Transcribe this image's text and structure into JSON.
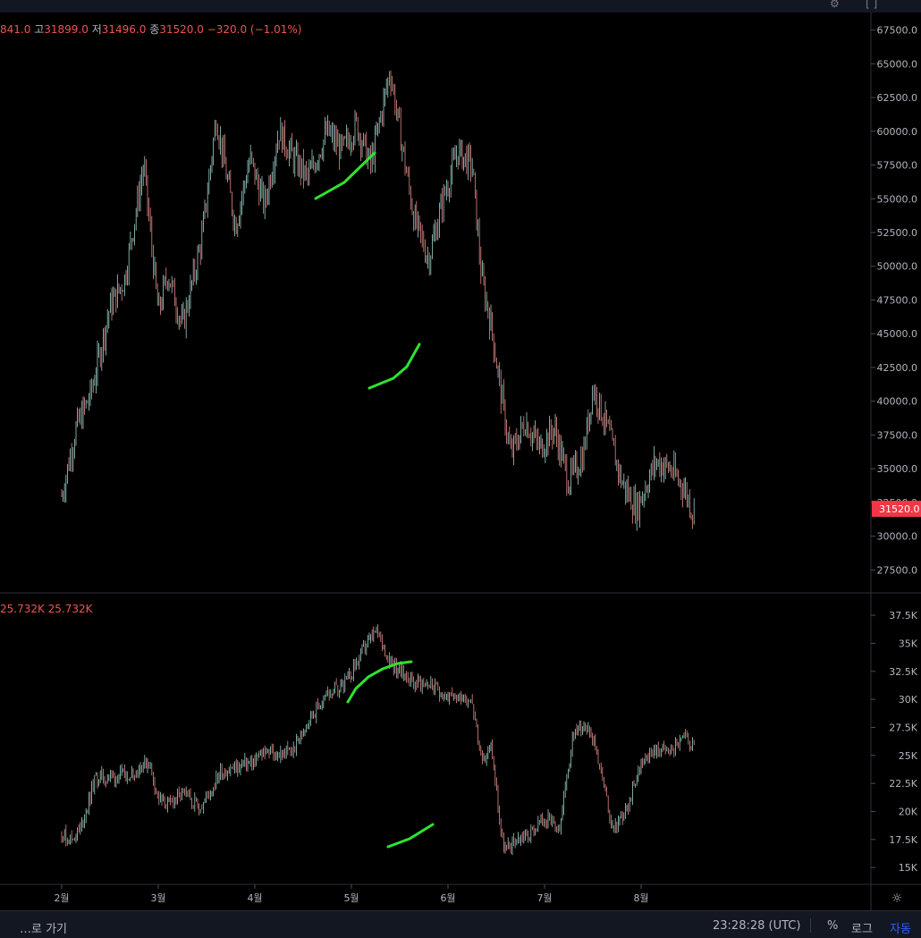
{
  "legend": {
    "open_label": "",
    "open_value": "841.0",
    "high_label": "고",
    "high_value": "31899.0",
    "low_label": "저",
    "low_value": "31496.0",
    "close_label": "종",
    "close_value": "31520.0",
    "change": "−320.0 (−1.01%)"
  },
  "indicator_legend": "25.732K 25.732K",
  "price_badge": "31520.0",
  "bottom": {
    "goto_label": "…로 가기",
    "time": "23:28:28 (UTC)",
    "percent_label": "%",
    "log_label": "로그",
    "auto_label": "자동"
  },
  "colors": {
    "background": "#000000",
    "up": "#26a69a",
    "down": "#ef5350",
    "annotation": "#2ee32e",
    "badge": "#f23645"
  },
  "chart_data": [
    {
      "type": "line",
      "description_free": true,
      "x_ticks": [
        "2월",
        "3월",
        "4월",
        "5월",
        "6월",
        "7월",
        "8월"
      ],
      "y_ticks": [
        27500.0,
        30000.0,
        32500.0,
        35000.0,
        37500.0,
        40000.0,
        42500.0,
        45000.0,
        47500.0,
        50000.0,
        52500.0,
        55000.0,
        57500.0,
        60000.0,
        62500.0,
        65000.0,
        67500.0
      ],
      "ylim": [
        25800,
        68800
      ],
      "x": [
        1.0,
        1.15,
        1.3,
        1.5,
        1.65,
        1.85,
        2.0,
        2.1,
        2.25,
        2.45,
        2.6,
        2.8,
        2.95,
        3.1,
        3.25,
        3.4,
        3.55,
        3.75,
        3.9,
        4.05,
        4.2,
        4.4,
        4.5,
        4.65,
        4.8,
        4.95,
        5.1,
        5.25,
        5.35,
        5.45,
        5.55,
        5.65,
        5.8,
        5.95,
        6.1,
        6.25,
        6.4,
        6.5,
        6.65,
        6.8,
        6.95,
        7.15,
        7.3,
        7.45,
        7.55
      ],
      "y": [
        33000,
        38000,
        40500,
        47000,
        49000,
        57500,
        46500,
        49500,
        45500,
        52000,
        61000,
        53000,
        58000,
        54500,
        60000,
        58000,
        56500,
        60000,
        58500,
        60500,
        57500,
        64500,
        60000,
        53500,
        50500,
        55000,
        58500,
        57500,
        49000,
        45500,
        40500,
        36000,
        38500,
        36500,
        38000,
        34000,
        36000,
        41000,
        38000,
        34000,
        32000,
        35500,
        35000,
        33500,
        31520
      ]
    },
    {
      "type": "line",
      "x_ticks": [
        "2월",
        "3월",
        "4월",
        "5월",
        "6월",
        "7월",
        "8월"
      ],
      "y_ticks": [
        "15K",
        "17.5K",
        "20K",
        "22.5K",
        "25K",
        "27.5K",
        "30K",
        "32.5K",
        "35K",
        "37.5K"
      ],
      "ylim": [
        13500,
        39500
      ],
      "x": [
        1.0,
        1.1,
        1.2,
        1.35,
        1.55,
        1.75,
        1.9,
        2.0,
        2.1,
        2.25,
        2.45,
        2.65,
        2.85,
        3.0,
        3.1,
        3.25,
        3.4,
        3.55,
        3.75,
        3.95,
        4.1,
        4.25,
        4.4,
        4.5,
        4.65,
        4.8,
        4.95,
        5.05,
        5.15,
        5.25,
        5.35,
        5.45,
        5.55,
        5.6,
        5.7,
        5.85,
        6.0,
        6.15,
        6.3,
        6.45,
        6.55,
        6.7,
        6.85,
        7.0,
        7.15,
        7.3,
        7.45,
        7.55
      ],
      "y": [
        18000,
        17500,
        18500,
        23000,
        23000,
        23500,
        24500,
        21000,
        20500,
        21500,
        20500,
        23500,
        24000,
        24500,
        25500,
        25000,
        25500,
        28000,
        30500,
        31500,
        34000,
        36000,
        33500,
        32500,
        31500,
        31500,
        30500,
        30000,
        30500,
        30000,
        24000,
        26000,
        18000,
        16500,
        17500,
        18000,
        19500,
        18000,
        27000,
        28000,
        25000,
        18500,
        20000,
        24500,
        25500,
        25500,
        26500,
        25732
      ]
    }
  ]
}
